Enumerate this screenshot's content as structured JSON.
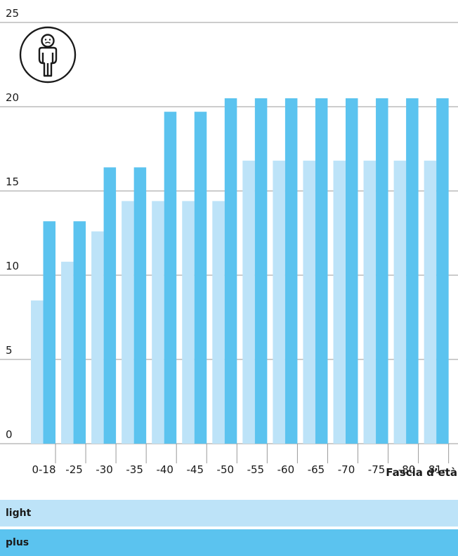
{
  "colors": {
    "light": "#bde3f8",
    "plus": "#5bc3ef",
    "grid": "#9a9a9a",
    "text": "#1a1a1a"
  },
  "person_icon": "person-icon",
  "chart_data": {
    "type": "bar",
    "title": "",
    "xlabel": "Fascia d’età",
    "ylabel": "",
    "ylim": [
      0,
      25
    ],
    "yticks": [
      0,
      5,
      10,
      15,
      20,
      25
    ],
    "grid": true,
    "legend_placement": "bottom",
    "categories": [
      "0-18",
      "-25",
      "-30",
      "-35",
      "-40",
      "-45",
      "-50",
      "-55",
      "-60",
      "-65",
      "-70",
      "-75",
      "-80",
      "81-"
    ],
    "series": [
      {
        "name": "light",
        "values": [
          8.5,
          10.8,
          12.6,
          14.4,
          14.4,
          14.4,
          14.4,
          16.8,
          16.8,
          16.8,
          16.8,
          16.8,
          16.8,
          16.8
        ]
      },
      {
        "name": "plus",
        "values": [
          13.2,
          13.2,
          16.4,
          16.4,
          19.7,
          19.7,
          20.5,
          20.5,
          20.5,
          20.5,
          20.5,
          20.5,
          20.5,
          20.5
        ]
      }
    ]
  }
}
